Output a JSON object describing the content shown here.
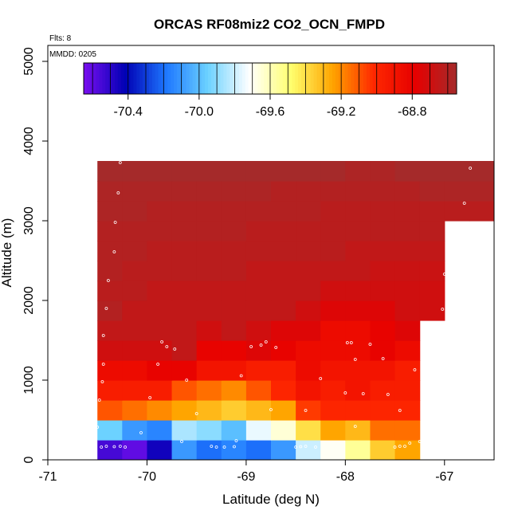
{
  "chart_data": {
    "type": "heatmap",
    "title": "ORCAS RF08miz2 CO2_OCN_FMPD",
    "flights_note": "Flts: 8",
    "date_note": "MMDD: 0205",
    "xlabel": "Latitude (deg N)",
    "ylabel": "Altitude (m)",
    "xlim": [
      -71,
      -66.5
    ],
    "ylim": [
      0,
      5200
    ],
    "x_ticks": [
      "-71",
      "-70",
      "-69",
      "-68",
      "-67"
    ],
    "x_tick_values": [
      -71,
      -70,
      -69,
      -68,
      -67
    ],
    "y_ticks": [
      "0",
      "1000",
      "2000",
      "3000",
      "4000",
      "5000"
    ],
    "y_tick_values": [
      0,
      1000,
      2000,
      3000,
      4000,
      5000
    ],
    "colorbar": {
      "min": -70.65,
      "max": -68.55,
      "tick_labels": [
        "-70.4",
        "-70.0",
        "-69.6",
        "-69.2",
        "-68.8"
      ],
      "tick_values": [
        -70.4,
        -70.0,
        -69.6,
        -69.2,
        -68.8
      ],
      "stops": [
        "#7a0ff0",
        "#0000b4",
        "#1e78ff",
        "#6cd2ff",
        "#ffffff",
        "#ffff6e",
        "#ffa500",
        "#ff2800",
        "#e60000",
        "#a52a2a"
      ]
    },
    "grid": {
      "x_start": -70.5,
      "x_step": 0.25,
      "y_start": 0,
      "y_step": 250,
      "rows": [
        [
          -70.55,
          -70.6,
          -70.45,
          -70.1,
          -70.2,
          -70.15,
          -70.2,
          -70.1,
          -69.8,
          -69.7,
          -69.55,
          -69.35,
          -69.25
        ],
        [
          -69.95,
          -70.1,
          -70.15,
          -69.85,
          -69.9,
          -70.0,
          -69.75,
          -69.65,
          -69.4,
          -69.25,
          -69.3,
          -69.15,
          -69.15
        ],
        [
          -69.1,
          -69.15,
          -69.2,
          -69.25,
          -69.3,
          -69.35,
          -69.3,
          -69.25,
          -69.05,
          -69.0,
          -69.0,
          -69.0,
          -69.0
        ],
        [
          -68.95,
          -68.95,
          -68.95,
          -69.1,
          -69.15,
          -69.2,
          -69.1,
          -69.0,
          -68.9,
          -68.95,
          -68.9,
          -68.95,
          -68.95
        ],
        [
          -68.85,
          -68.85,
          -68.8,
          -68.8,
          -68.9,
          -68.9,
          -68.95,
          -68.95,
          -68.85,
          -68.9,
          -68.9,
          -68.9,
          -68.95
        ],
        [
          -68.7,
          -68.7,
          -68.7,
          -68.65,
          -68.8,
          -68.8,
          -68.75,
          -68.8,
          -68.85,
          -68.85,
          -68.85,
          -68.8,
          -68.85
        ],
        [
          -68.65,
          -68.65,
          -68.65,
          -68.65,
          -68.7,
          -68.65,
          -68.7,
          -68.75,
          -68.75,
          -68.85,
          -68.85,
          -68.8,
          -68.75
        ],
        [
          -68.6,
          -68.65,
          -68.65,
          -68.65,
          -68.65,
          -68.65,
          -68.65,
          -68.65,
          -68.7,
          -68.75,
          -68.75,
          -68.75,
          -68.7,
          -68.7
        ],
        [
          -68.62,
          -68.62,
          -68.65,
          -68.65,
          -68.65,
          -68.65,
          -68.65,
          -68.65,
          -68.65,
          -68.7,
          -68.7,
          -68.7,
          -68.7,
          -68.7
        ],
        [
          -68.6,
          -68.62,
          -68.62,
          -68.62,
          -68.62,
          -68.62,
          -68.65,
          -68.65,
          -68.65,
          -68.65,
          -68.65,
          -68.68,
          -68.68,
          -68.68
        ],
        [
          -68.6,
          -68.6,
          -68.62,
          -68.62,
          -68.62,
          -68.62,
          -68.62,
          -68.62,
          -68.62,
          -68.62,
          -68.65,
          -68.65,
          -68.65,
          -68.65
        ],
        [
          -68.6,
          -68.6,
          -68.6,
          -68.6,
          -68.6,
          -68.6,
          -68.62,
          -68.62,
          -68.62,
          -68.62,
          -68.62,
          -68.62,
          -68.62,
          -68.62
        ],
        [
          -68.58,
          -68.58,
          -68.6,
          -68.6,
          -68.6,
          -68.6,
          -68.6,
          -68.6,
          -68.6,
          -68.62,
          -68.62,
          -68.62,
          -68.62,
          -68.62,
          -68.62,
          -68.62
        ],
        [
          -68.58,
          -68.58,
          -68.58,
          -68.58,
          -68.58,
          -68.58,
          -68.58,
          -68.6,
          -68.6,
          -68.6,
          -68.6,
          -68.6,
          -68.6,
          -68.58,
          -68.58,
          -68.58
        ],
        [
          -68.55,
          -68.55,
          -68.55,
          -68.55,
          -68.55,
          -68.55,
          -68.55,
          -68.55,
          -68.55,
          -68.55,
          -68.58,
          -68.58,
          -68.55,
          -68.55,
          -68.55,
          -68.55
        ]
      ]
    },
    "observation_points": [
      [
        -70.46,
        160
      ],
      [
        -70.41,
        170
      ],
      [
        -70.33,
        165
      ],
      [
        -70.27,
        170
      ],
      [
        -70.22,
        160
      ],
      [
        -70.06,
        340
      ],
      [
        -70.5,
        410
      ],
      [
        -70.48,
        750
      ],
      [
        -69.97,
        780
      ],
      [
        -69.05,
        1055
      ],
      [
        -70.45,
        980
      ],
      [
        -70.44,
        1200
      ],
      [
        -70.44,
        1560
      ],
      [
        -70.41,
        1900
      ],
      [
        -70.39,
        2250
      ],
      [
        -70.33,
        2610
      ],
      [
        -70.32,
        2980
      ],
      [
        -70.29,
        3350
      ],
      [
        -70.27,
        3730
      ],
      [
        -69.89,
        1200
      ],
      [
        -69.6,
        1000
      ],
      [
        -69.5,
        580
      ],
      [
        -69.35,
        170
      ],
      [
        -69.1,
        240
      ],
      [
        -68.75,
        630
      ],
      [
        -68.4,
        620
      ],
      [
        -68.25,
        1020
      ],
      [
        -68.0,
        840
      ],
      [
        -67.9,
        1260
      ],
      [
        -67.82,
        830
      ],
      [
        -67.75,
        1450
      ],
      [
        -67.62,
        1270
      ],
      [
        -67.57,
        820
      ],
      [
        -67.45,
        620
      ],
      [
        -67.3,
        1130
      ],
      [
        -67.2,
        610
      ],
      [
        -67.1,
        1450
      ],
      [
        -67.02,
        1890
      ],
      [
        -67.0,
        2330
      ],
      [
        -66.9,
        2770
      ],
      [
        -66.8,
        3220
      ],
      [
        -66.74,
        3660
      ],
      [
        -69.65,
        230
      ],
      [
        -69.3,
        160
      ],
      [
        -69.22,
        160
      ],
      [
        -69.12,
        165
      ],
      [
        -68.5,
        160
      ],
      [
        -68.45,
        165
      ],
      [
        -68.4,
        170
      ],
      [
        -68.3,
        160
      ],
      [
        -67.9,
        420
      ],
      [
        -67.5,
        160
      ],
      [
        -67.45,
        170
      ],
      [
        -67.4,
        170
      ],
      [
        -67.35,
        210
      ],
      [
        -67.25,
        230
      ],
      [
        -69.72,
        1390
      ],
      [
        -69.8,
        1420
      ],
      [
        -69.85,
        1480
      ],
      [
        -68.95,
        1420
      ],
      [
        -68.85,
        1440
      ],
      [
        -68.8,
        1480
      ],
      [
        -68.7,
        1410
      ],
      [
        -67.98,
        1470
      ],
      [
        -67.94,
        1470
      ]
    ]
  }
}
